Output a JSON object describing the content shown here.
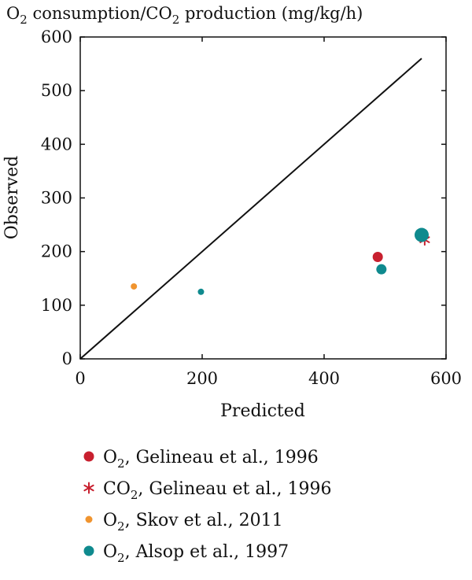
{
  "chart_data": {
    "type": "scatter",
    "title": {
      "prefix": "O",
      "sub1": "2",
      "middle": " consumption/CO",
      "sub2": "2",
      "suffix": " production (mg/kg/h)"
    },
    "xlabel": "Predicted",
    "ylabel": "Observed",
    "xlim": [
      0,
      600
    ],
    "ylim": [
      0,
      600
    ],
    "xticks": [
      "0",
      "200",
      "400",
      "600"
    ],
    "yticks": [
      "0",
      "100",
      "200",
      "300",
      "400",
      "500",
      "600"
    ],
    "grid": false,
    "identity_line": {
      "x": [
        0,
        560
      ],
      "y": [
        0,
        560
      ]
    },
    "legend_position": "below",
    "series": [
      {
        "name": {
          "pre": "O",
          "sub": "2",
          "post": ", Gelineau et al., 1996"
        },
        "marker": "circle",
        "color": "#c8202f",
        "points": [
          {
            "x": 488,
            "y": 190,
            "size": "medium"
          }
        ]
      },
      {
        "name": {
          "pre": "CO",
          "sub": "2",
          "post": ", Gelineau et al., 1996"
        },
        "marker": "asterisk",
        "color": "#c8202f",
        "points": [
          {
            "x": 565,
            "y": 222,
            "size": "medium"
          }
        ]
      },
      {
        "name": {
          "pre": "O",
          "sub": "2",
          "post": ", Skov et al., 2011"
        },
        "marker": "circle",
        "color": "#f0942f",
        "points": [
          {
            "x": 88,
            "y": 135,
            "size": "small"
          }
        ]
      },
      {
        "name": {
          "pre": "O",
          "sub": "2",
          "post": ", Alsop et al., 1997"
        },
        "marker": "circle",
        "color": "#0f8a8e",
        "points": [
          {
            "x": 198,
            "y": 125,
            "size": "small"
          },
          {
            "x": 494,
            "y": 167,
            "size": "medium"
          },
          {
            "x": 560,
            "y": 231,
            "size": "large"
          }
        ]
      }
    ]
  }
}
